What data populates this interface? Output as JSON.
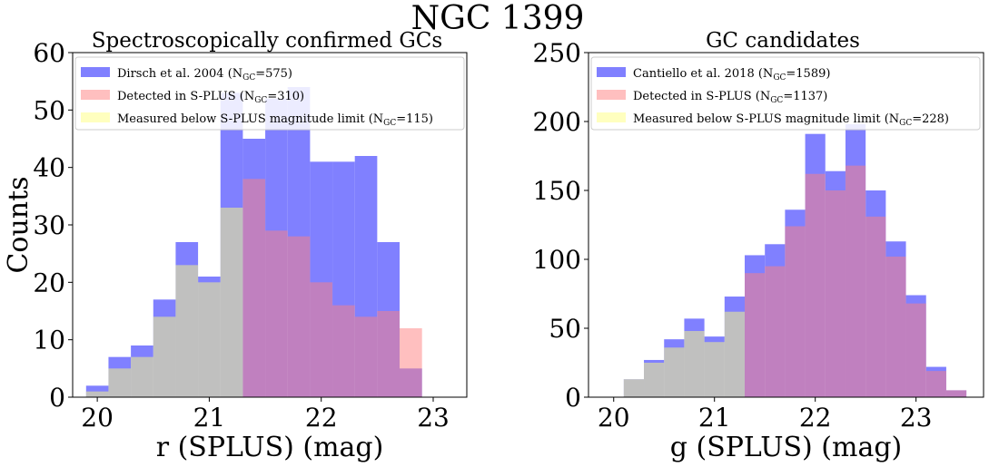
{
  "figure": {
    "title": "NGC 1399"
  },
  "chart_data": [
    {
      "type": "histogram",
      "title": "Spectroscopically confirmed GCs",
      "xlabel": "r (SPLUS) (mag)",
      "ylabel": "Counts",
      "xlim": [
        19.78,
        23.3
      ],
      "ylim": [
        0,
        60
      ],
      "xticks": [
        "20",
        "21",
        "22",
        "23"
      ],
      "xtick_values": [
        20,
        21,
        22,
        23
      ],
      "yticks": [
        "0",
        "10",
        "20",
        "30",
        "40",
        "50",
        "60"
      ],
      "ytick_values": [
        0,
        10,
        20,
        30,
        40,
        50,
        60
      ],
      "legend_position": "upper-left",
      "series": [
        {
          "name": "Dirsch et al. 2004 (N_GC=575)",
          "label_main": "Dirsch et al. 2004 (N",
          "label_sub": "GC",
          "label_tail": "=575)",
          "color": "#8080ff",
          "bin_start": 19.9,
          "bin_width": 0.2,
          "values": [
            2,
            7,
            9,
            17,
            27,
            21,
            53,
            45,
            52,
            54,
            41,
            41,
            42,
            27,
            5
          ]
        },
        {
          "name": "Detected in S-PLUS (N_GC=310)",
          "label_main": "Detected in S-PLUS (N",
          "label_sub": "GC",
          "label_tail": "=310)",
          "color": "#ff8080",
          "bin_start": 21.3,
          "bin_width": 0.2,
          "values": [
            38,
            29,
            28,
            20,
            16,
            14,
            15,
            12
          ]
        },
        {
          "name": "Measured below S-PLUS magnitude limit (N_GC=115)",
          "label_main": "Measured below S-PLUS magnitude limit (N",
          "label_sub": "GC",
          "label_tail": "=115)",
          "color": "#ffff80",
          "bin_start": 19.9,
          "bin_width": 0.2,
          "values": [
            1,
            5,
            7,
            14,
            23,
            20,
            33
          ]
        }
      ],
      "overlap_colors": {
        "red_over_blue": "#c03d7f",
        "yellow_over_blue": "#df9a3f"
      }
    },
    {
      "type": "histogram",
      "title": "GC candidates",
      "xlabel": "g (SPLUS) (mag)",
      "ylabel": "",
      "xlim": [
        19.75,
        23.67
      ],
      "ylim": [
        0,
        250
      ],
      "xticks": [
        "20",
        "21",
        "22",
        "23"
      ],
      "xtick_values": [
        20,
        21,
        22,
        23
      ],
      "yticks": [
        "0",
        "50",
        "100",
        "150",
        "200",
        "250"
      ],
      "ytick_values": [
        0,
        50,
        100,
        150,
        200,
        250
      ],
      "legend_position": "upper-left",
      "series": [
        {
          "name": "Cantiello et al. 2018 (N_GC=1589)",
          "label_main": "Cantiello et al. 2018 (N",
          "label_sub": "GC",
          "label_tail": "=1589)",
          "color": "#8080ff",
          "bin_start": 20.1,
          "bin_width": 0.2,
          "values": [
            13,
            27,
            42,
            57,
            44,
            73,
            103,
            111,
            136,
            191,
            164,
            198,
            150,
            113,
            74,
            22,
            5
          ]
        },
        {
          "name": "Detected in S-PLUS (N_GC=1137)",
          "label_main": "Detected in S-PLUS (N",
          "label_sub": "GC",
          "label_tail": "=1137)",
          "color": "#ff8080",
          "bin_start": 21.3,
          "bin_width": 0.2,
          "values": [
            90,
            95,
            124,
            162,
            150,
            168,
            131,
            102,
            68,
            19,
            5
          ]
        },
        {
          "name": "Measured below S-PLUS magnitude limit (N_GC=228)",
          "label_main": "Measured below S-PLUS magnitude limit (N",
          "label_sub": "GC",
          "label_tail": "=228)",
          "color": "#ffff80",
          "bin_start": 20.1,
          "bin_width": 0.2,
          "values": [
            13,
            25,
            36,
            48,
            40,
            62
          ]
        }
      ],
      "overlap_colors": {
        "red_over_blue": "#c03d7f",
        "yellow_over_blue": "#df9a3f"
      }
    }
  ]
}
